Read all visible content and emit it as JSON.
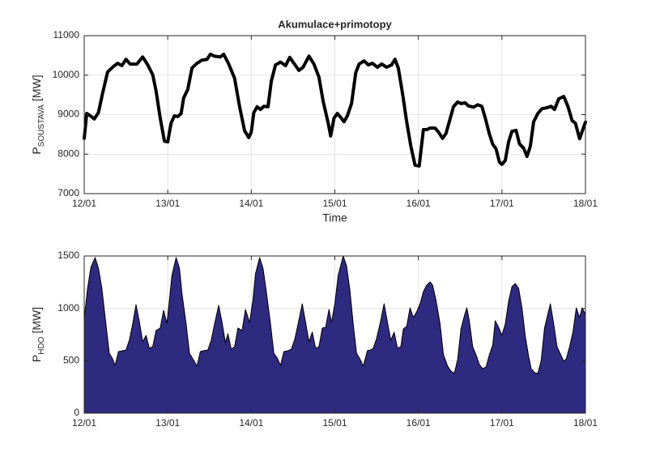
{
  "chart_data": [
    {
      "type": "line",
      "title": "Akumulace+primotopy",
      "xlabel": "Time",
      "ylabel": "P",
      "ylabel_sub": "SOUSTAVA",
      "ylabel_unit": "[MW]",
      "xlim": [
        12,
        18
      ],
      "xticks": [
        {
          "value": 12,
          "label": "12/01"
        },
        {
          "value": 13,
          "label": "13/01"
        },
        {
          "value": 14,
          "label": "14/01"
        },
        {
          "value": 15,
          "label": "15/01"
        },
        {
          "value": 16,
          "label": "16/01"
        },
        {
          "value": 17,
          "label": "17/01"
        },
        {
          "value": 18,
          "label": "18/01"
        }
      ],
      "ylim": [
        7000,
        11000
      ],
      "yticks": [
        7000,
        8000,
        9000,
        10000,
        11000
      ],
      "grid": true,
      "x": [
        12.0,
        12.03,
        12.06,
        12.12,
        12.17,
        12.22,
        12.28,
        12.35,
        12.4,
        12.45,
        12.5,
        12.55,
        12.63,
        12.7,
        12.76,
        12.82,
        12.86,
        12.91,
        12.96,
        13.0,
        13.04,
        13.08,
        13.12,
        13.16,
        13.19,
        13.24,
        13.29,
        13.35,
        13.41,
        13.47,
        13.51,
        13.56,
        13.63,
        13.67,
        13.73,
        13.8,
        13.86,
        13.92,
        13.97,
        14.0,
        14.03,
        14.07,
        14.11,
        14.15,
        14.2,
        14.24,
        14.29,
        14.35,
        14.41,
        14.46,
        14.51,
        14.57,
        14.62,
        14.69,
        14.75,
        14.81,
        14.86,
        14.92,
        14.95,
        14.99,
        15.03,
        15.07,
        15.11,
        15.15,
        15.2,
        15.25,
        15.29,
        15.35,
        15.4,
        15.45,
        15.51,
        15.56,
        15.62,
        15.68,
        15.72,
        15.76,
        15.81,
        15.86,
        15.91,
        15.96,
        16.01,
        16.06,
        16.1,
        16.14,
        16.2,
        16.24,
        16.29,
        16.33,
        16.37,
        16.42,
        16.47,
        16.51,
        16.56,
        16.6,
        16.66,
        16.71,
        16.76,
        16.8,
        16.85,
        16.89,
        16.93,
        16.97,
        17.0,
        17.04,
        17.08,
        17.12,
        17.17,
        17.21,
        17.26,
        17.3,
        17.34,
        17.38,
        17.43,
        17.48,
        17.53,
        17.59,
        17.63,
        17.68,
        17.74,
        17.79,
        17.84,
        17.88,
        17.93,
        17.96,
        18.0
      ],
      "series": [
        {
          "color": "#000000",
          "values": [
            8400,
            9030,
            8990,
            8890,
            9050,
            9540,
            10080,
            10220,
            10300,
            10240,
            10400,
            10280,
            10280,
            10460,
            10260,
            10010,
            9600,
            8910,
            8330,
            8310,
            8790,
            8970,
            8950,
            9030,
            9420,
            9640,
            10180,
            10300,
            10380,
            10400,
            10530,
            10480,
            10460,
            10530,
            10280,
            9920,
            9200,
            8590,
            8420,
            8560,
            9050,
            9200,
            9130,
            9210,
            9200,
            9850,
            10260,
            10330,
            10240,
            10450,
            10300,
            10120,
            10200,
            10480,
            10280,
            9950,
            9340,
            8790,
            8460,
            8910,
            9030,
            8930,
            8820,
            8970,
            9280,
            10060,
            10280,
            10360,
            10260,
            10300,
            10200,
            10280,
            10200,
            10260,
            10400,
            10180,
            9540,
            8820,
            8200,
            7720,
            7700,
            8620,
            8620,
            8660,
            8660,
            8560,
            8400,
            8520,
            8820,
            9200,
            9320,
            9280,
            9300,
            9220,
            9190,
            9250,
            9210,
            8920,
            8510,
            8250,
            8130,
            7800,
            7740,
            7840,
            8310,
            8580,
            8600,
            8260,
            8150,
            7940,
            8200,
            8820,
            9030,
            9150,
            9170,
            9210,
            9130,
            9400,
            9460,
            9210,
            8850,
            8780,
            8390,
            8570,
            8810
          ]
        }
      ]
    },
    {
      "type": "area",
      "ylabel": "P",
      "ylabel_sub": "HDO",
      "ylabel_unit": "[MW]",
      "xlim": [
        12,
        18
      ],
      "xticks": [
        {
          "value": 12,
          "label": "12/01"
        },
        {
          "value": 13,
          "label": "13/01"
        },
        {
          "value": 14,
          "label": "14/01"
        },
        {
          "value": 15,
          "label": "15/01"
        },
        {
          "value": 16,
          "label": "16/01"
        },
        {
          "value": 17,
          "label": "17/01"
        },
        {
          "value": 18,
          "label": "18/01"
        }
      ],
      "ylim": [
        0,
        1500
      ],
      "yticks": [
        0,
        500,
        1000,
        1500
      ],
      "grid": true,
      "x": [
        12.0,
        12.04,
        12.08,
        12.13,
        12.17,
        12.21,
        12.26,
        12.3,
        12.34,
        12.37,
        12.41,
        12.46,
        12.5,
        12.54,
        12.58,
        12.62,
        12.66,
        12.7,
        12.74,
        12.78,
        12.82,
        12.86,
        12.91,
        12.95,
        12.99,
        13.01,
        13.05,
        13.1,
        13.14,
        13.17,
        13.22,
        13.26,
        13.3,
        13.35,
        13.39,
        13.43,
        13.48,
        13.52,
        13.56,
        13.61,
        13.65,
        13.69,
        13.72,
        13.76,
        13.8,
        13.84,
        13.89,
        13.93,
        13.98,
        14.02,
        14.05,
        14.1,
        14.14,
        14.18,
        14.23,
        14.27,
        14.31,
        14.35,
        14.39,
        14.44,
        14.48,
        14.52,
        14.56,
        14.61,
        14.65,
        14.69,
        14.73,
        14.77,
        14.81,
        14.85,
        14.89,
        14.93,
        14.96,
        15.0,
        15.04,
        15.1,
        15.14,
        15.18,
        15.22,
        15.26,
        15.3,
        15.34,
        15.39,
        15.43,
        15.46,
        15.5,
        15.54,
        15.59,
        15.63,
        15.67,
        15.71,
        15.75,
        15.79,
        15.82,
        15.86,
        15.9,
        15.94,
        15.98,
        16.02,
        16.06,
        16.1,
        16.14,
        16.17,
        16.21,
        16.26,
        16.3,
        16.35,
        16.39,
        16.43,
        16.47,
        16.51,
        16.55,
        16.58,
        16.61,
        16.65,
        16.69,
        16.73,
        16.77,
        16.81,
        16.85,
        16.89,
        16.92,
        16.96,
        17.0,
        17.04,
        17.08,
        17.12,
        17.16,
        17.2,
        17.24,
        17.28,
        17.32,
        17.35,
        17.39,
        17.43,
        17.47,
        17.51,
        17.54,
        17.58,
        17.62,
        17.66,
        17.7,
        17.74,
        17.77,
        17.81,
        17.85,
        17.89,
        17.93,
        17.96,
        18.0
      ],
      "series": [
        {
          "color": "#2e2a7f",
          "values": [
            905,
            1191,
            1392,
            1485,
            1384,
            1199,
            851,
            572,
            518,
            456,
            588,
            596,
            603,
            696,
            851,
            1036,
            874,
            681,
            742,
            619,
            634,
            789,
            812,
            982,
            858,
            1005,
            1315,
            1485,
            1384,
            1145,
            851,
            572,
            518,
            449,
            588,
            596,
            603,
            696,
            851,
            1029,
            866,
            673,
            758,
            611,
            634,
            812,
            789,
            990,
            866,
            1083,
            1330,
            1485,
            1384,
            1160,
            851,
            572,
            526,
            456,
            588,
            596,
            611,
            704,
            851,
            1044,
            866,
            681,
            773,
            619,
            634,
            812,
            820,
            990,
            866,
            1044,
            1315,
            1500,
            1408,
            1176,
            851,
            572,
            518,
            449,
            596,
            603,
            619,
            712,
            851,
            1044,
            866,
            696,
            773,
            619,
            634,
            804,
            828,
            1005,
            913,
            967,
            1044,
            1160,
            1222,
            1253,
            1222,
            1083,
            851,
            557,
            449,
            402,
            379,
            510,
            804,
            928,
            1005,
            882,
            634,
            557,
            464,
            425,
            441,
            557,
            650,
            882,
            820,
            742,
            851,
            1067,
            1207,
            1237,
            1191,
            1005,
            735,
            541,
            425,
            387,
            379,
            503,
            812,
            913,
            1044,
            851,
            634,
            565,
            495,
            518,
            634,
            773,
            1005,
            913,
            1005,
            944
          ]
        }
      ]
    }
  ]
}
